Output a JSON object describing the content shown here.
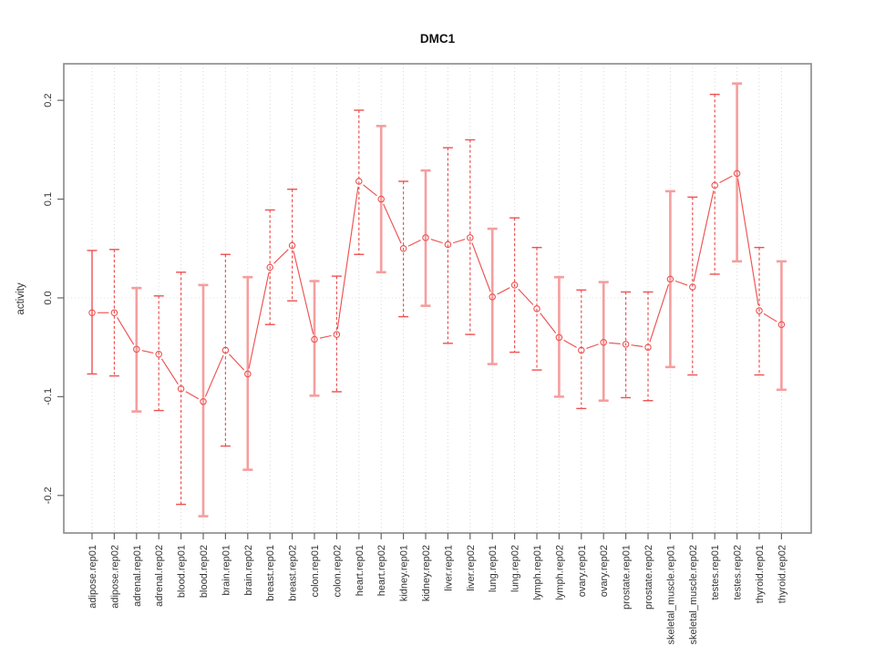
{
  "chart_data": {
    "type": "scatter",
    "title": "DMC1",
    "xlabel": "",
    "ylabel": "activity",
    "ylim": [
      -0.238,
      0.237
    ],
    "y_ticks": [
      {
        "v": -0.2,
        "label": "-0.2"
      },
      {
        "v": -0.1,
        "label": "-0.1"
      },
      {
        "v": 0.0,
        "label": "0.0"
      },
      {
        "v": 0.1,
        "label": "0.1"
      },
      {
        "v": 0.2,
        "label": "0.2"
      }
    ],
    "grid": {
      "vertical": "dotted-per-category",
      "horizontal_zero_line": true,
      "legend": "none"
    },
    "categories": [
      "adipose.rep01",
      "adipose.rep02",
      "adrenal.rep01",
      "adrenal.rep02",
      "blood.rep01",
      "blood.rep02",
      "brain.rep01",
      "brain.rep02",
      "breast.rep01",
      "breast.rep02",
      "colon.rep01",
      "colon.rep02",
      "heart.rep01",
      "heart.rep02",
      "kidney.rep01",
      "kidney.rep02",
      "liver.rep01",
      "liver.rep02",
      "lung.rep01",
      "lung.rep02",
      "lymph.rep01",
      "lymph.rep02",
      "ovary.rep01",
      "ovary.rep02",
      "prostate.rep01",
      "prostate.rep02",
      "skeletal_muscle.rep01",
      "skeletal_muscle.rep02",
      "testes.rep01",
      "testes.rep02",
      "thyroid.rep01",
      "thyroid.rep02"
    ],
    "series": [
      {
        "name": "DMC1 activity",
        "marker": "open-circle",
        "values": [
          -0.015,
          -0.015,
          -0.052,
          -0.057,
          -0.092,
          -0.105,
          -0.053,
          -0.077,
          0.031,
          0.053,
          -0.042,
          -0.037,
          0.118,
          0.1,
          0.05,
          0.061,
          0.054,
          0.061,
          0.001,
          0.013,
          -0.011,
          -0.04,
          -0.053,
          -0.045,
          -0.047,
          -0.05,
          0.019,
          0.011,
          0.114,
          0.126,
          -0.013,
          -0.027
        ],
        "error_low": [
          -0.077,
          -0.079,
          -0.115,
          -0.114,
          -0.209,
          -0.221,
          -0.15,
          -0.174,
          -0.027,
          -0.003,
          -0.099,
          -0.095,
          0.044,
          0.026,
          -0.019,
          -0.008,
          -0.046,
          -0.037,
          -0.067,
          -0.055,
          -0.073,
          -0.1,
          -0.112,
          -0.104,
          -0.101,
          -0.104,
          -0.07,
          -0.078,
          0.024,
          0.037,
          -0.078,
          -0.093
        ],
        "error_high": [
          0.048,
          0.049,
          0.01,
          0.002,
          0.026,
          0.013,
          0.044,
          0.021,
          0.089,
          0.11,
          0.017,
          0.022,
          0.19,
          0.174,
          0.118,
          0.129,
          0.152,
          0.16,
          0.07,
          0.081,
          0.051,
          0.021,
          0.008,
          0.016,
          0.006,
          0.006,
          0.108,
          0.102,
          0.206,
          0.217,
          0.051,
          0.037
        ],
        "bar_styles": [
          "solid-thin",
          "dashed",
          "solid",
          "dashed",
          "dashed",
          "solid",
          "dashed",
          "solid",
          "dashed",
          "dashed",
          "solid",
          "dashed",
          "dashed",
          "solid",
          "dashed",
          "solid",
          "dashed",
          "dashed",
          "solid",
          "dashed",
          "dashed",
          "solid",
          "dashed",
          "solid",
          "dashed",
          "dashed",
          "solid",
          "dashed",
          "dashed",
          "solid",
          "dashed",
          "solid"
        ]
      }
    ],
    "colors": {
      "point": "#ee5252",
      "line": "#ee5252",
      "dashed_bar": "#ee5252",
      "solid_bar": "#f59e9e",
      "grid": "#d9d9d9",
      "zero_line": "#e2e2e2",
      "box": "#888888",
      "tick": "#666666",
      "text": "#333333"
    }
  }
}
